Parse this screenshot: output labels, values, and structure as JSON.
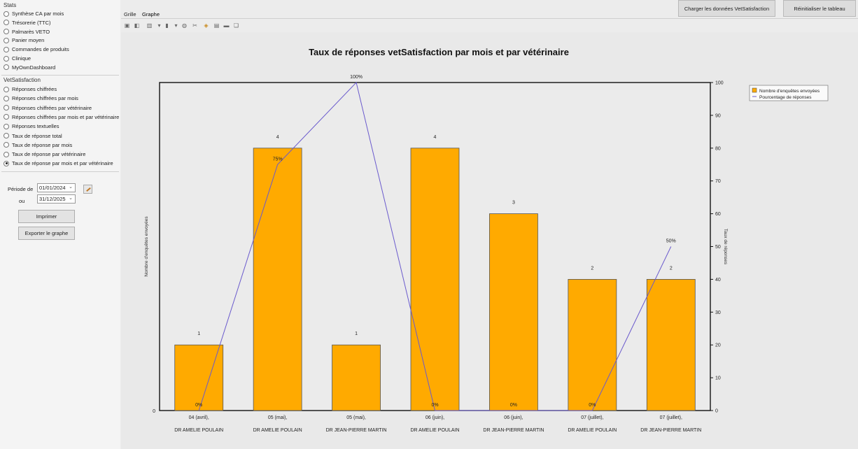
{
  "stats": {
    "title": "Stats",
    "items": [
      {
        "label": "Synthèse CA par mois",
        "checked": false
      },
      {
        "label": "Trésorerie (TTC)",
        "checked": false
      },
      {
        "label": "Palmarès VETO",
        "checked": false
      },
      {
        "label": "Panier moyen",
        "checked": false
      },
      {
        "label": "Commandes de produits",
        "checked": false
      },
      {
        "label": "Clinique",
        "checked": false
      },
      {
        "label": "MyOwnDashboard",
        "checked": false
      }
    ]
  },
  "vetsatisfaction": {
    "title": "VetSatisfaction",
    "items": [
      {
        "label": "Réponses chiffrées",
        "checked": false
      },
      {
        "label": "Réponses chiffrées par mois",
        "checked": false
      },
      {
        "label": "Réponses chiffrées par vétérinaire",
        "checked": false
      },
      {
        "label": "Réponses chiffrées par mois et par vétérinaire",
        "checked": false
      },
      {
        "label": "Réponses textuelles",
        "checked": false
      },
      {
        "label": "Taux de réponse total",
        "checked": false
      },
      {
        "label": "Taux de réponse par mois",
        "checked": false
      },
      {
        "label": "Taux de réponse par vétérinaire",
        "checked": false
      },
      {
        "label": "Taux de réponse par mois et par vétérinaire",
        "checked": true
      }
    ]
  },
  "period": {
    "from_label": "Période de",
    "to_label": "ou",
    "from_value": "01/01/2024",
    "to_value": "31/12/2025",
    "chevron": "⌄"
  },
  "actions": {
    "print_label": "Imprimer",
    "export_label": "Exporter le graphe"
  },
  "top": {
    "load_label": "Charger les données VetSatisfaction",
    "reset_label": "Réinitialiser le tableau"
  },
  "tabs": {
    "grid_label": "Grille",
    "chart_label": "Graphe"
  },
  "toolbar": {
    "icons": [
      "save-icon",
      "open-icon",
      "bar-chart-icon",
      "dropdown-icon",
      "bar-type-icon",
      "dropdown-icon",
      "zoom-icon",
      "cut-icon",
      "select-icon",
      "data-icon",
      "print-icon",
      "copy-icon"
    ]
  },
  "chart_data": {
    "type": "bar",
    "title": "Taux de réponses vetSatisfaction par mois et par vétérinaire",
    "ylabel": "Nombre d'enquêtes envoyées",
    "y2label": "Taux de réponses",
    "ylim": [
      0,
      5
    ],
    "y2lim": [
      0,
      100
    ],
    "y2ticks": [
      0,
      10,
      20,
      30,
      40,
      50,
      60,
      70,
      80,
      90,
      100
    ],
    "ytick_zero": "0",
    "categories": [
      {
        "line1": "04 (avril),",
        "line2": "DR AMELIE POULAIN"
      },
      {
        "line1": "05 (mai),",
        "line2": "DR AMELIE POULAIN"
      },
      {
        "line1": "05 (mai),",
        "line2": "DR JEAN-PIERRE MARTIN"
      },
      {
        "line1": "06 (juin),",
        "line2": "DR AMELIE POULAIN"
      },
      {
        "line1": "06 (juin),",
        "line2": "DR JEAN-PIERRE MARTIN"
      },
      {
        "line1": "07 (juillet),",
        "line2": "DR AMELIE POULAIN"
      },
      {
        "line1": "07 (juillet),",
        "line2": "DR JEAN-PIERRE MARTIN"
      }
    ],
    "series": [
      {
        "name": "Nombre d'enquêtes envoyées",
        "kind": "bar",
        "color": "#ffaa00",
        "values": [
          1,
          4,
          1,
          4,
          3,
          2,
          2
        ],
        "labels": [
          "1",
          "4",
          "1",
          "4",
          "3",
          "2",
          "2"
        ]
      },
      {
        "name": "Pourcentage de réponses",
        "kind": "line",
        "color": "#6a5acd",
        "values": [
          0,
          75,
          100,
          0,
          0,
          0,
          50
        ],
        "labels": [
          "0%",
          "75%",
          "100%",
          "0%",
          "0%",
          "0%",
          "50%"
        ]
      }
    ],
    "legend": "top-right"
  }
}
